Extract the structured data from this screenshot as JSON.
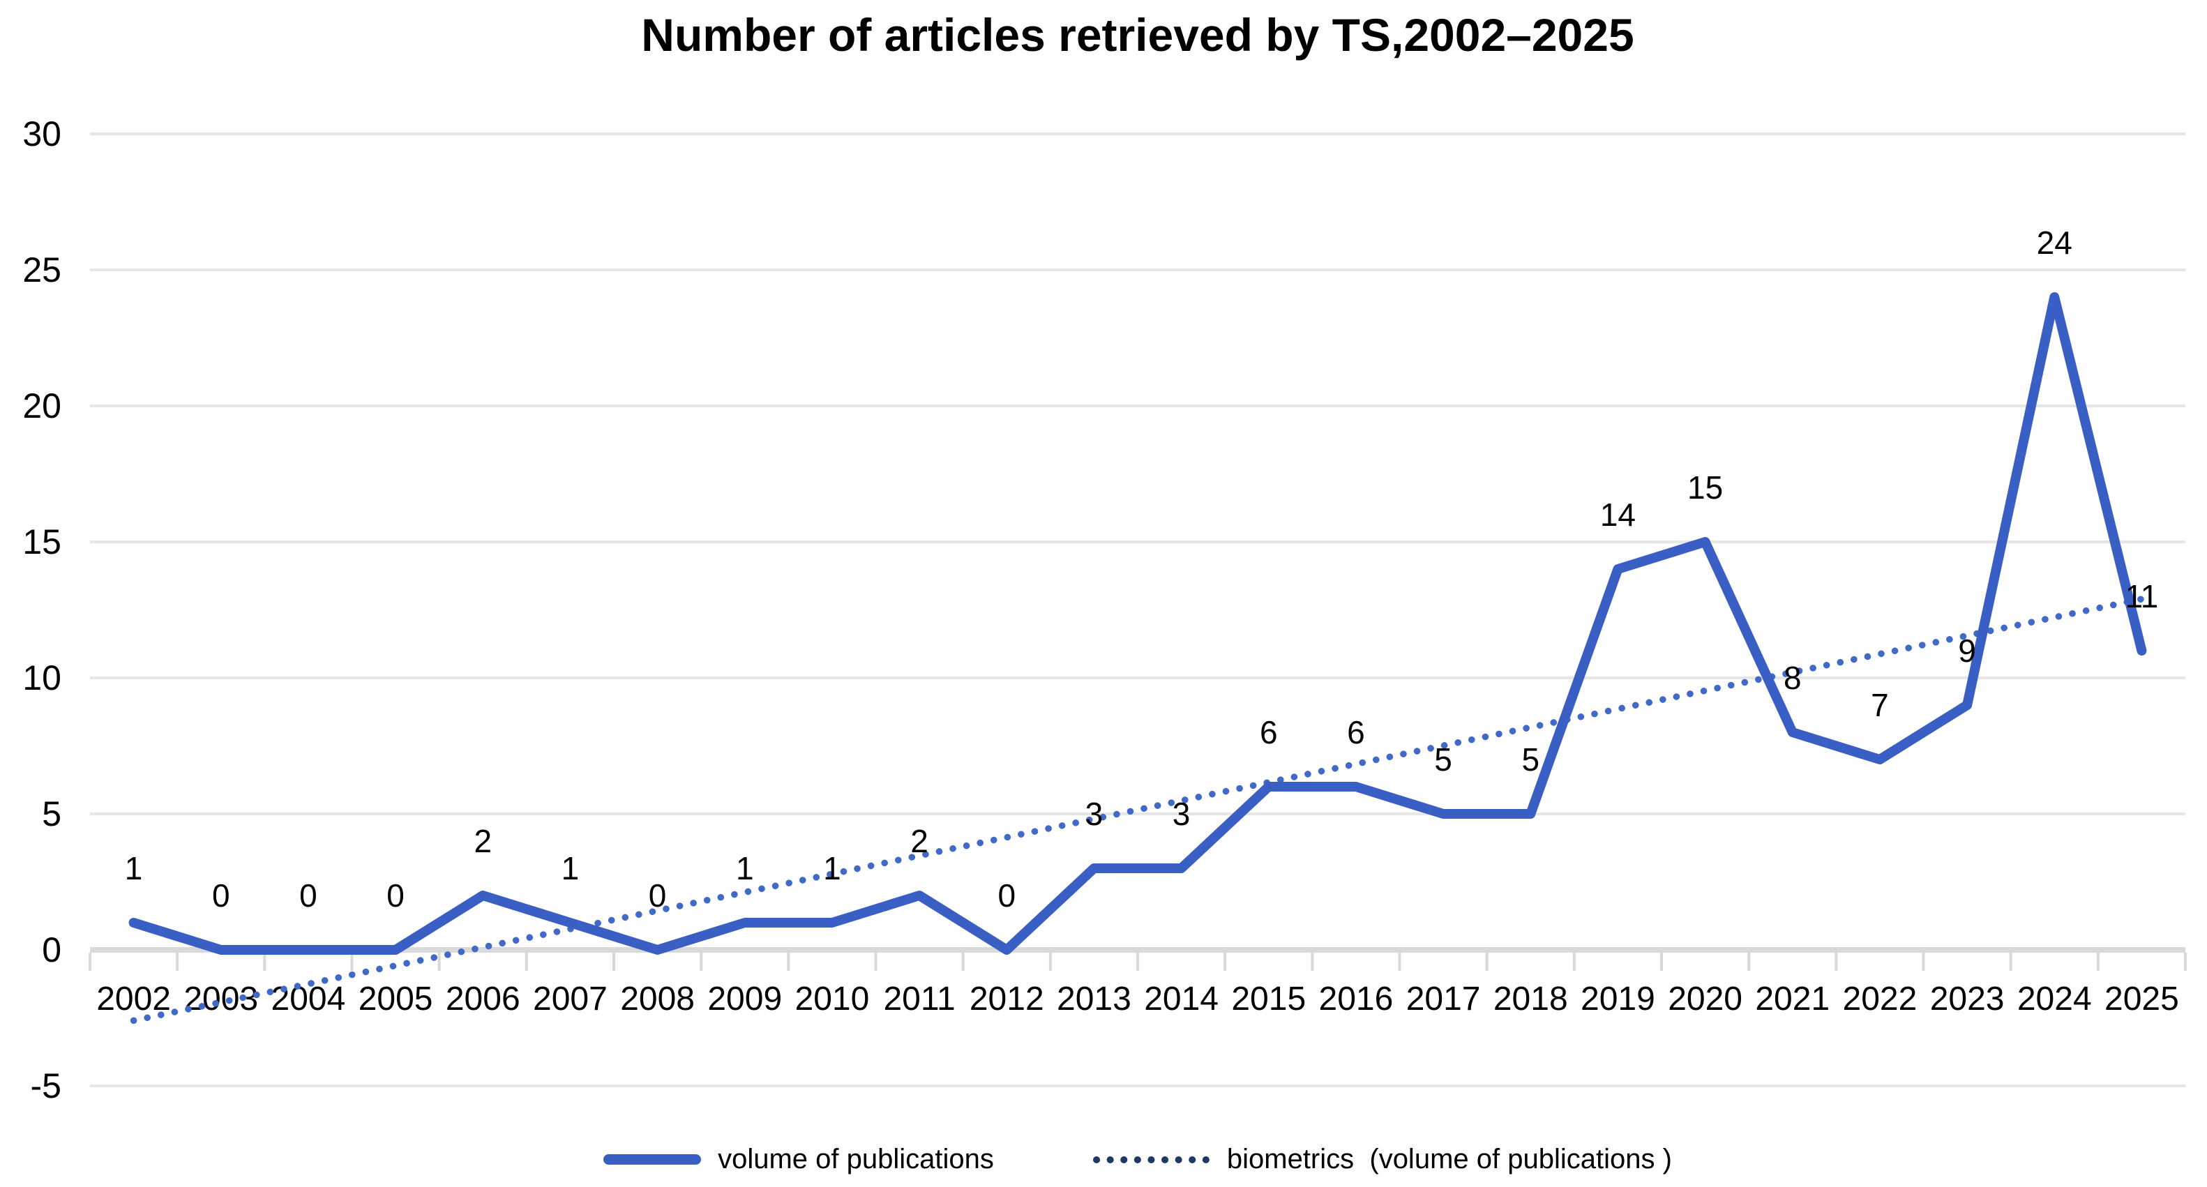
{
  "chart_data": {
    "type": "line",
    "title": "Number of articles retrieved by TS,2002–2025",
    "categories": [
      "2002",
      "2003",
      "2004",
      "2005",
      "2006",
      "2007",
      "2008",
      "2009",
      "2010",
      "2011",
      "2012",
      "2013",
      "2014",
      "2015",
      "2016",
      "2017",
      "2018",
      "2019",
      "2020",
      "2021",
      "2022",
      "2023",
      "2024",
      "2025"
    ],
    "series": [
      {
        "name": "volume of publications",
        "values": [
          1,
          0,
          0,
          0,
          2,
          1,
          0,
          1,
          1,
          2,
          0,
          3,
          3,
          6,
          6,
          5,
          5,
          14,
          15,
          8,
          7,
          9,
          24,
          11
        ],
        "color": "#3A5FC4",
        "style": "solid",
        "data_labels": true
      }
    ],
    "trendline": {
      "name": "biometrics  (volume of publications )",
      "style": "dotted",
      "color": "#4169C8",
      "start_value": -2.6,
      "end_value": 12.9
    },
    "y_axis": {
      "min": -5,
      "max": 30,
      "step": 5,
      "ticks": [
        30,
        25,
        20,
        15,
        10,
        5,
        0,
        -5
      ]
    },
    "xlabel": "",
    "ylabel": "",
    "grid": true,
    "legend_position": "bottom",
    "legend": [
      {
        "label": "volume of publications",
        "marker": "solid-line",
        "color": "#3A5FC4"
      },
      {
        "label": "biometrics  (volume of publications )",
        "marker": "dotted-line",
        "color": "#1F3864"
      }
    ],
    "colors": {
      "gridline": "#E6E6E6",
      "axis_line": "#D9D9D9",
      "tick": "#D9D9D9",
      "text": "#000000"
    }
  }
}
